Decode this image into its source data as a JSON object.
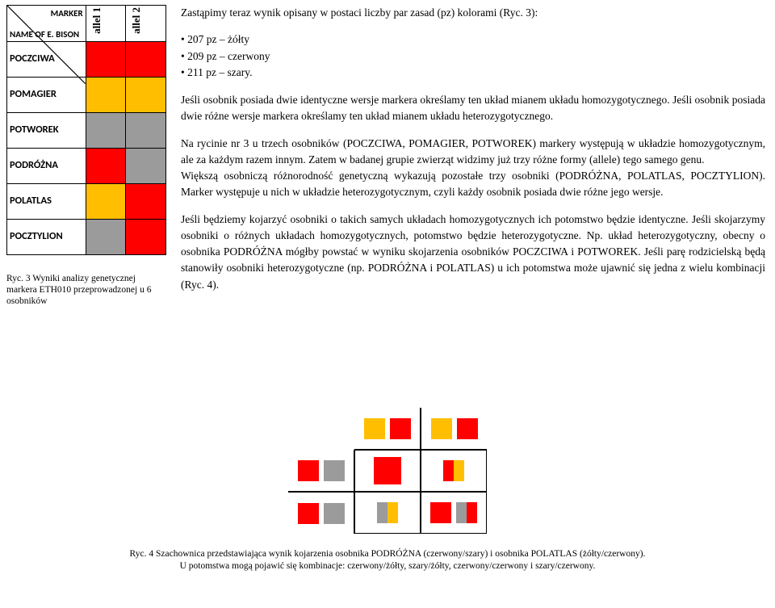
{
  "colors": {
    "red": "#ff0000",
    "yellow": "#ffbf00",
    "grey": "#9b9b9b",
    "border": "#000000",
    "text": "#000000"
  },
  "table": {
    "hdr_marker": "MARKER",
    "hdr_name": "NAME OF E. BISON",
    "allel1": "allel 1",
    "allel2": "allel 2",
    "rows": [
      {
        "name": "POCZCIWA",
        "c1": "#ff0000",
        "c2": "#ff0000"
      },
      {
        "name": "POMAGIER",
        "c1": "#ffbf00",
        "c2": "#ffbf00"
      },
      {
        "name": "POTWOREK",
        "c1": "#9b9b9b",
        "c2": "#9b9b9b"
      },
      {
        "name": "PODRÓŻNA",
        "c1": "#ff0000",
        "c2": "#9b9b9b"
      },
      {
        "name": "POLATLAS",
        "c1": "#ffbf00",
        "c2": "#ff0000"
      },
      {
        "name": "POCZTYLION",
        "c1": "#9b9b9b",
        "c2": "#ff0000"
      }
    ]
  },
  "caption_left": "Ryc. 3 Wyniki analizy genetycznej markera ETH010 przeprowadzonej u 6 osobników",
  "text": {
    "intro": "Zastąpimy teraz wynik opisany w postaci liczby par zasad (pz) kolorami (Ryc. 3):",
    "bul1": "207 pz – żółty",
    "bul2": "209 pz – czerwony",
    "bul3": "211 pz – szary.",
    "p2": "Jeśli osobnik posiada dwie identyczne wersje markera określamy ten układ mianem układu homozygotycznego. Jeśli osobnik posiada dwie różne wersje markera określamy ten układ mianem układu heterozygotycznego.",
    "p3": "Na rycinie nr 3 u trzech osobników (POCZCIWA, POMAGIER, POTWOREK) markery występują w układzie homozygotycznym, ale za każdym razem innym. Zatem w badanej grupie zwierząt widzimy już trzy różne formy (allele) tego samego genu.",
    "p3b": "Większą osobniczą różnorodność genetyczną wykazują pozostałe trzy osobniki (PODRÓŻNA, POLATLAS, POCZTYLION). Marker występuje u nich w układzie heterozygotycznym, czyli każdy osobnik posiada dwie różne jego wersje.",
    "p4": "Jeśli będziemy kojarzyć osobniki o takich samych układach homozygotycznych ich potomstwo będzie identyczne. Jeśli skojarzymy osobniki o różnych układach homozygotycznych, potomstwo będzie heterozygotyczne. Np. układ heterozygotyczny, obecny o osobnika PODRÓŻNA mógłby powstać w wyniku skojarzenia osobników POCZCIWA i POTWOREK. Jeśli parę rodzicielską będą stanowiły osobniki heterozygotyczne (np. PODRÓŻNA i POLATLAS) u ich potomstwa może ujawnić się jedna z wielu kombinacji (Ryc. 4)."
  },
  "fig4": {
    "parent_col_a": [
      "#ffbf00",
      "#ff0000"
    ],
    "parent_col_b": [
      "#ffbf00",
      "#ff0000"
    ],
    "parent_row_a": [
      "#ff0000",
      "#9b9b9b"
    ],
    "parent_row_b": [
      "#ff0000",
      "#9b9b9b"
    ],
    "cell11": "#ff0000",
    "cell12": [
      "#ff0000",
      "#ffbf00"
    ],
    "cell21": [
      "#9b9b9b",
      "#ffbf00"
    ],
    "cell22": [
      "#ff0000",
      "#ff0000",
      "#9b9b9b",
      "#ff0000"
    ]
  },
  "caption4_l1": "Ryc. 4 Szachownica przedstawiająca wynik kojarzenia osobnika PODRÓŻNA (czerwony/szary) i osobnika POLATLAS (żółty/czerwony).",
  "caption4_l2": "U potomstwa mogą pojawić się kombinacje: czerwony/żółty, szary/żółty, czerwony/czerwony i szary/czerwony."
}
